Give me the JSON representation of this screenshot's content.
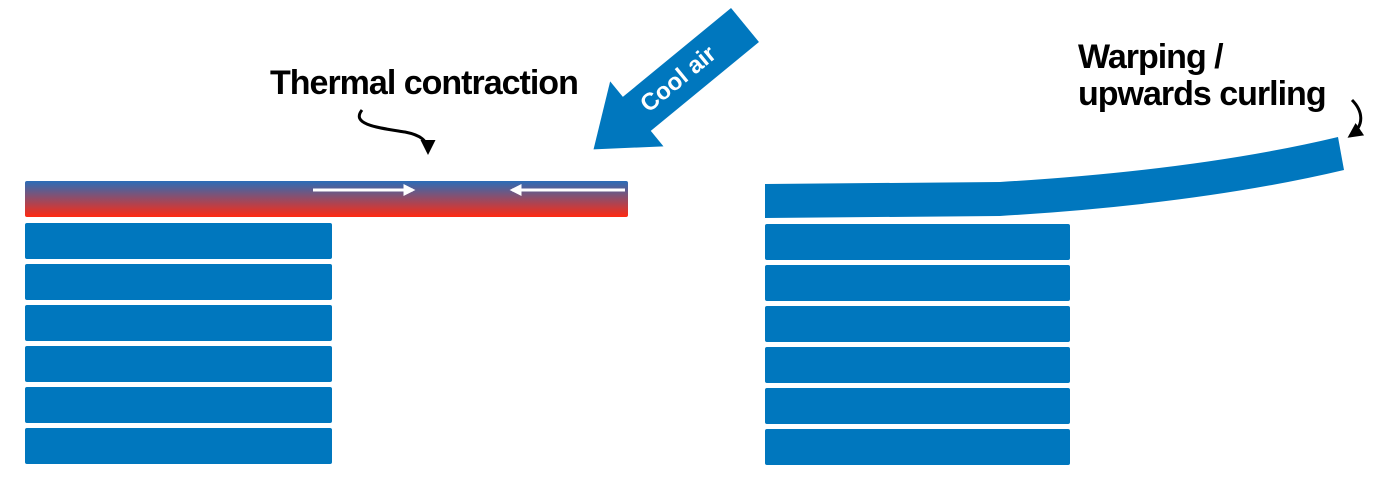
{
  "labels": {
    "thermal": "Thermal contraction",
    "cool_air": "Cool air",
    "warping_1": "Warping /",
    "warping_2": "upwards curling"
  }
}
